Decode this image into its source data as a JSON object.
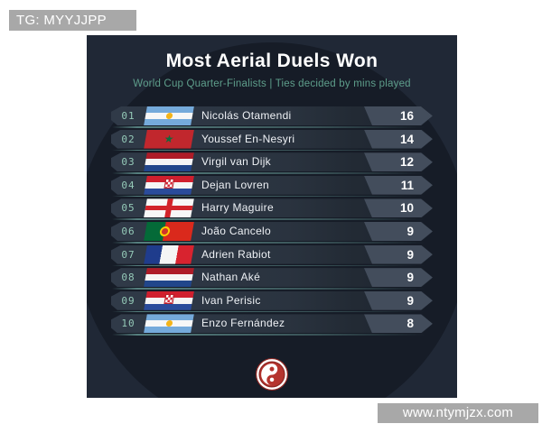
{
  "page": {
    "tg_label": "TG: MYYJJPP",
    "watermark": "www.ntymjzx.com"
  },
  "header": {
    "title": "Most Aerial Duels Won",
    "subtitle": "World Cup Quarter-Finalists | Ties decided by mins played"
  },
  "leaderboard": {
    "rows": [
      {
        "rank": "01",
        "country": "argentina",
        "player": "Nicolás Otamendi",
        "value": 16
      },
      {
        "rank": "02",
        "country": "morocco",
        "player": "Youssef En-Nesyri",
        "value": 14
      },
      {
        "rank": "03",
        "country": "netherlands",
        "player": "Virgil van Dijk",
        "value": 12
      },
      {
        "rank": "04",
        "country": "croatia",
        "player": "Dejan Lovren",
        "value": 11
      },
      {
        "rank": "05",
        "country": "england",
        "player": "Harry Maguire",
        "value": 10
      },
      {
        "rank": "06",
        "country": "portugal",
        "player": "João Cancelo",
        "value": 9
      },
      {
        "rank": "07",
        "country": "france",
        "player": "Adrien Rabiot",
        "value": 9
      },
      {
        "rank": "08",
        "country": "netherlands",
        "player": "Nathan Aké",
        "value": 9
      },
      {
        "rank": "09",
        "country": "croatia",
        "player": "Ivan Perisic",
        "value": 9
      },
      {
        "rank": "10",
        "country": "argentina",
        "player": "Enzo Fernández",
        "value": 8
      }
    ]
  },
  "chart_data": {
    "type": "table",
    "title": "Most Aerial Duels Won",
    "subtitle": "World Cup Quarter-Finalists | Ties decided by mins played",
    "columns": [
      "rank",
      "country",
      "player",
      "aerial_duels_won"
    ],
    "rows": [
      [
        "01",
        "Argentina",
        "Nicolás Otamendi",
        16
      ],
      [
        "02",
        "Morocco",
        "Youssef En-Nesyri",
        14
      ],
      [
        "03",
        "Netherlands",
        "Virgil van Dijk",
        12
      ],
      [
        "04",
        "Croatia",
        "Dejan Lovren",
        11
      ],
      [
        "05",
        "England",
        "Harry Maguire",
        10
      ],
      [
        "06",
        "Portugal",
        "João Cancelo",
        9
      ],
      [
        "07",
        "France",
        "Adrien Rabiot",
        9
      ],
      [
        "08",
        "Netherlands",
        "Nathan Aké",
        9
      ],
      [
        "09",
        "Croatia",
        "Ivan Perisic",
        9
      ],
      [
        "10",
        "Argentina",
        "Enzo Fernández",
        8
      ]
    ],
    "value_range": [
      8,
      16
    ],
    "legend": "none",
    "grid": false
  },
  "colors": {
    "page_background": "#ffffff",
    "panel_background": "#202836",
    "panel_circle": "#161c27",
    "row_background": "#2a333f",
    "badge_background": "#434d5c",
    "rank_text": "#95cab8",
    "subtitle_text": "#5e9e8b",
    "title_text": "#ffffff",
    "overlay_gray": "#a8a8a8",
    "underline_teal": "#89cfc5",
    "logo_red": "#b5342e"
  }
}
